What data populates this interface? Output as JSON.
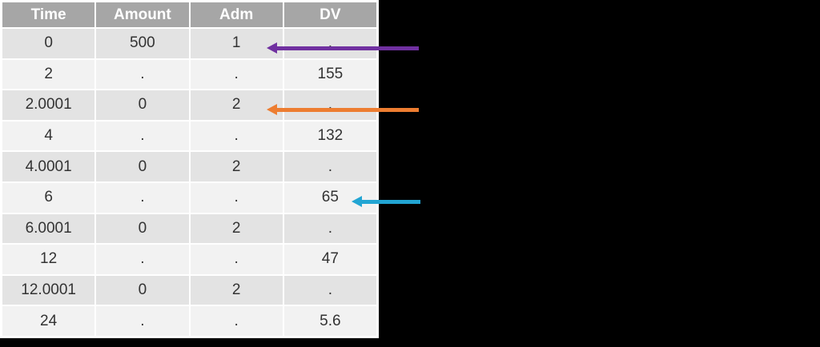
{
  "colors": {
    "canvas_background": "#000000",
    "panel_background": "#ffffff",
    "header_background": "#a6a6a6",
    "header_text": "#ffffff",
    "cell_text": "#333333",
    "row_shade_dark": "#e3e3e3",
    "row_shade_light": "#f2f2f2"
  },
  "chart_data": {
    "type": "table",
    "columns": [
      "Time",
      "Amount",
      "Adm",
      "DV"
    ],
    "rows": [
      [
        "0",
        "500",
        "1",
        "."
      ],
      [
        "2",
        ".",
        ".",
        "155"
      ],
      [
        "2.0001",
        "0",
        "2",
        "."
      ],
      [
        "4",
        ".",
        ".",
        "132"
      ],
      [
        "4.0001",
        "0",
        "2",
        "."
      ],
      [
        "6",
        ".",
        ".",
        "65"
      ],
      [
        "6.0001",
        "0",
        "2",
        "."
      ],
      [
        "12",
        ".",
        ".",
        "47"
      ],
      [
        "12.0001",
        "0",
        "2",
        "."
      ],
      [
        "24",
        ".",
        ".",
        "5.6"
      ]
    ],
    "layout": {
      "grid": "white gaps between cells",
      "striping": "alternating gray rows",
      "header": "gray band, white bold text"
    }
  },
  "annotations": {
    "arrows": [
      {
        "name": "purple-arrow",
        "color": "#7030a0",
        "target_row": 0,
        "target_column": "Adm",
        "target_value": "1"
      },
      {
        "name": "orange-arrow",
        "color": "#ed7d31",
        "target_row": 2,
        "target_column": "Adm",
        "target_value": "2"
      },
      {
        "name": "cyan-arrow",
        "color": "#22a5d3",
        "target_row": 5,
        "target_column": "DV",
        "target_value": "65"
      }
    ]
  }
}
